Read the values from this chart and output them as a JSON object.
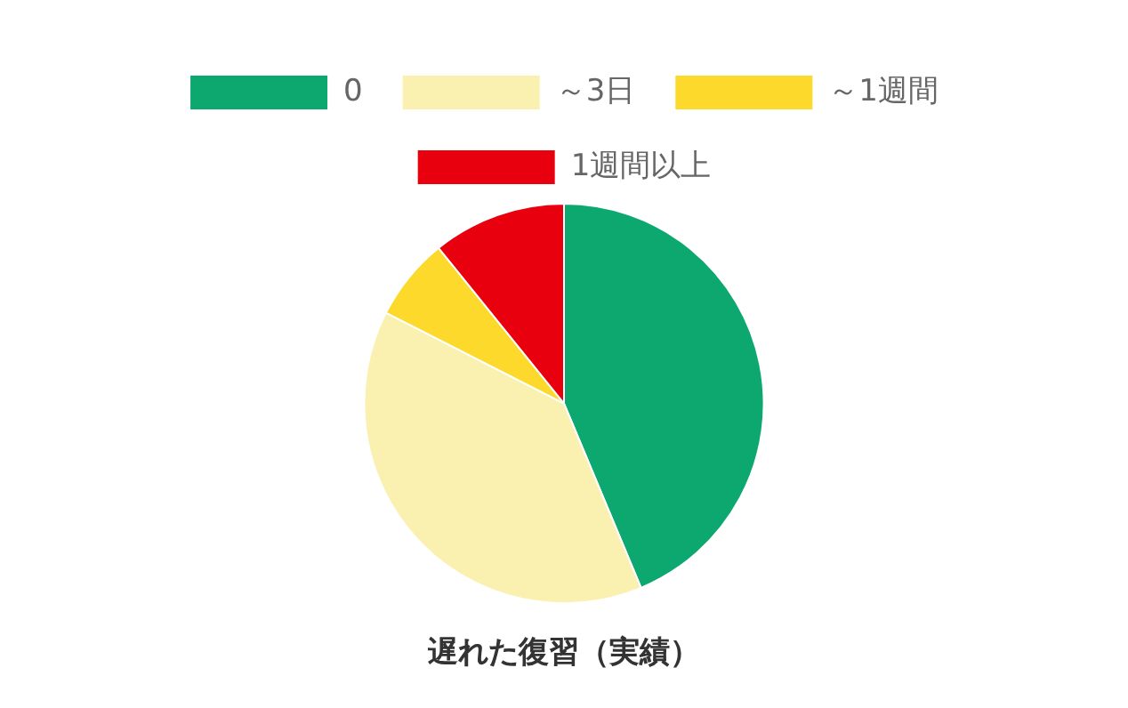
{
  "chart_data": {
    "type": "pie",
    "title": "遅れた復習（実績）",
    "categories": [
      "0",
      "～3日",
      "～1週間",
      "1週間以上"
    ],
    "values": [
      43.7,
      38.8,
      6.7,
      10.8
    ],
    "colors": [
      "#0ca870",
      "#faf0b0",
      "#fcd92a",
      "#e8000f"
    ],
    "legend": "top"
  }
}
